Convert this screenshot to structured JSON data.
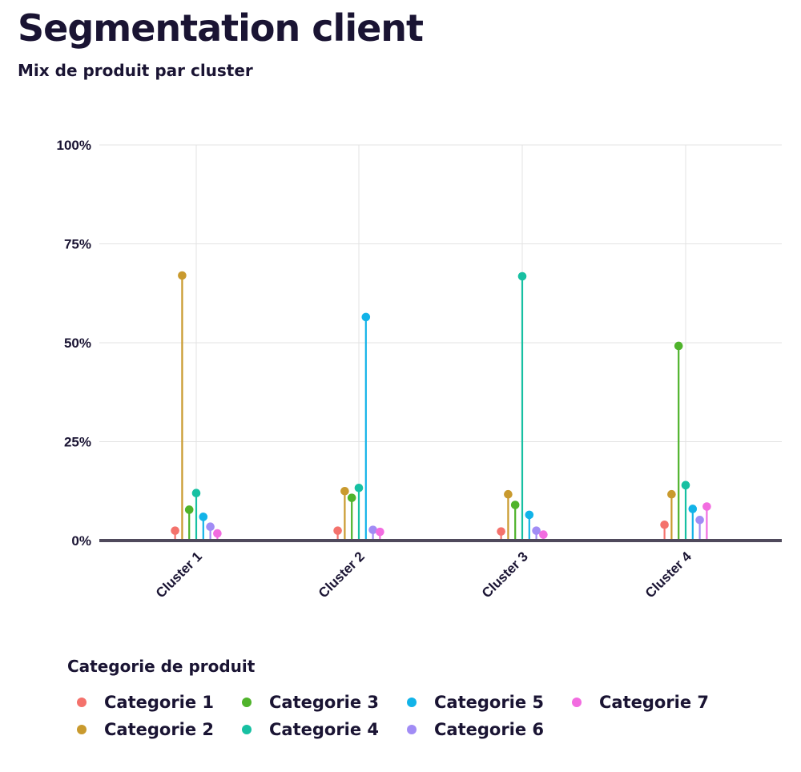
{
  "title": "Segmentation client",
  "subtitle": "Mix de produit par cluster",
  "legend_title": "Categorie de produit",
  "chart_data": {
    "type": "lollipop",
    "title": "Segmentation client",
    "subtitle": "Mix de produit par cluster",
    "categories": [
      "Cluster 1",
      "Cluster 2",
      "Cluster 3",
      "Cluster 4"
    ],
    "y_ticks": [
      "0%",
      "25%",
      "50%",
      "75%",
      "100%"
    ],
    "ylim": [
      0,
      100
    ],
    "y_unit": "%",
    "grid": true,
    "legend_placement": "bottom",
    "series": [
      {
        "name": "Categorie 1",
        "color": "#f4726c",
        "values": [
          2.5,
          2.5,
          2.3,
          4.0
        ]
      },
      {
        "name": "Categorie 2",
        "color": "#c99a2e",
        "values": [
          67.0,
          12.5,
          11.7,
          11.7
        ]
      },
      {
        "name": "Categorie 3",
        "color": "#4fb32b",
        "values": [
          7.8,
          10.8,
          9.0,
          49.2
        ]
      },
      {
        "name": "Categorie 4",
        "color": "#17c0a2",
        "values": [
          12.0,
          13.3,
          66.8,
          14.0
        ]
      },
      {
        "name": "Categorie 5",
        "color": "#12b3e8",
        "values": [
          6.0,
          56.5,
          6.5,
          8.0
        ]
      },
      {
        "name": "Categorie 6",
        "color": "#a18cf5",
        "values": [
          3.5,
          2.7,
          2.5,
          5.2
        ]
      },
      {
        "name": "Categorie 7",
        "color": "#f26ce0",
        "values": [
          1.8,
          2.2,
          1.5,
          8.6
        ]
      }
    ]
  }
}
